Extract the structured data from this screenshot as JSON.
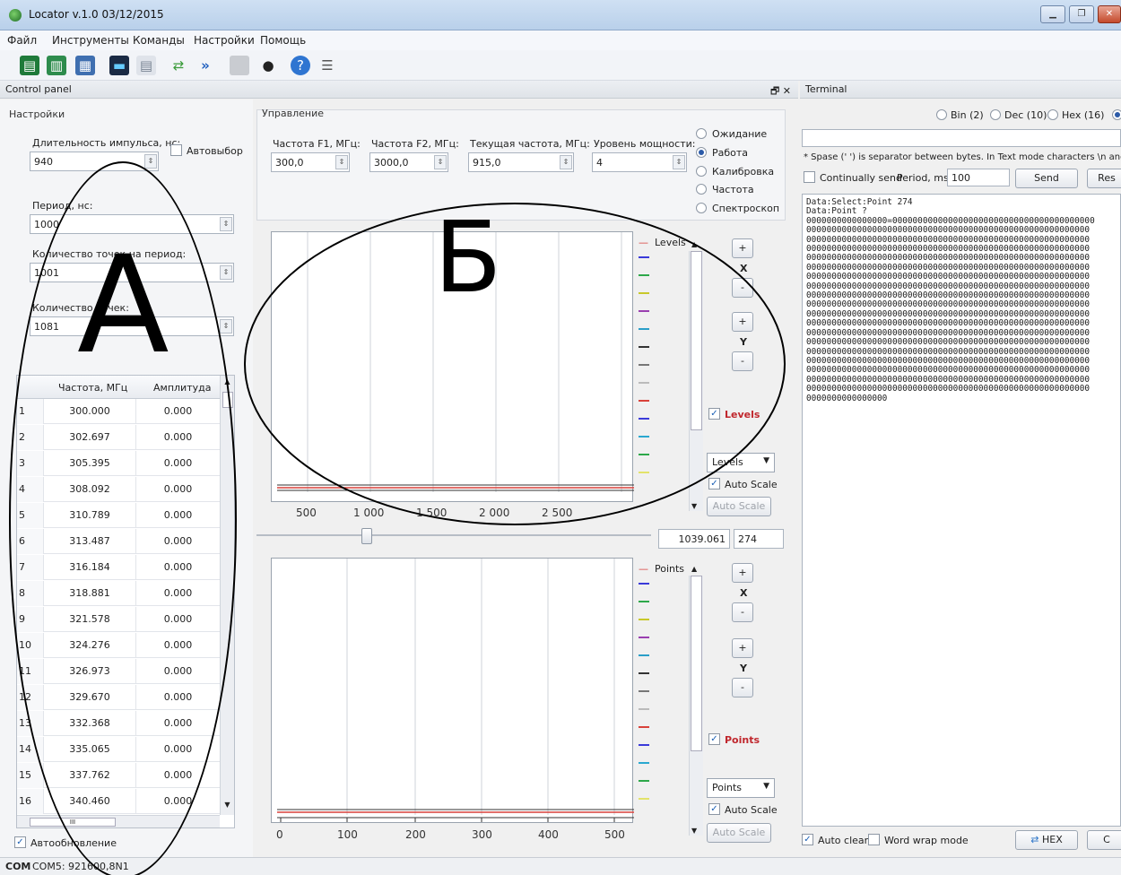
{
  "window": {
    "title": "Locator v.1.0 03/12/2015"
  },
  "menu": [
    "Файл",
    "Инструменты",
    "Команды",
    "Настройки",
    "Помощь"
  ],
  "docks": {
    "control": "Control panel",
    "terminal": "Terminal",
    "dock_icons": "🗗 ✕"
  },
  "settings": {
    "group": "Настройки",
    "pulse_label": "Длительность импульса, нс:",
    "pulse_value": "940",
    "auto_label": "Автовыбор",
    "period_label": "Период, нс:",
    "period_value": "1000",
    "points_per_period_label": "Количество точек на период:",
    "points_per_period_value": "1001",
    "points_label": "Количество точек:",
    "points_value": "1081"
  },
  "table": {
    "headers": [
      "Частота, МГц",
      "Амплитуда"
    ],
    "rows": [
      [
        "1",
        "300.000",
        "0.000"
      ],
      [
        "2",
        "302.697",
        "0.000"
      ],
      [
        "3",
        "305.395",
        "0.000"
      ],
      [
        "4",
        "308.092",
        "0.000"
      ],
      [
        "5",
        "310.789",
        "0.000"
      ],
      [
        "6",
        "313.487",
        "0.000"
      ],
      [
        "7",
        "316.184",
        "0.000"
      ],
      [
        "8",
        "318.881",
        "0.000"
      ],
      [
        "9",
        "321.578",
        "0.000"
      ],
      [
        "10",
        "324.276",
        "0.000"
      ],
      [
        "11",
        "326.973",
        "0.000"
      ],
      [
        "12",
        "329.670",
        "0.000"
      ],
      [
        "13",
        "332.368",
        "0.000"
      ],
      [
        "14",
        "335.065",
        "0.000"
      ],
      [
        "15",
        "337.762",
        "0.000"
      ],
      [
        "16",
        "340.460",
        "0.000"
      ]
    ],
    "hscroll_label": "III"
  },
  "auto_update": "Автообновление",
  "control": {
    "group": "Управление",
    "f1_label": "Частота F1, МГц:",
    "f1_value": "300,0",
    "f2_label": "Частота F2, МГц:",
    "f2_value": "3000,0",
    "cur_label": "Текущая частота, МГц:",
    "cur_value": "915,0",
    "power_label": "Уровень мощности:",
    "power_value": "4",
    "modes": [
      "Ожидание",
      "Работа",
      "Калибровка",
      "Частота",
      "Спектроскоп"
    ],
    "selected_mode": "Работа"
  },
  "plot1": {
    "legend": "Levels",
    "x_ticks": [
      "500",
      "1 000",
      "1 500",
      "2 000",
      "2 500"
    ],
    "check": "Levels",
    "combo": "Levels",
    "auto_scale": "Auto Scale",
    "auto_scale_btn": "Auto Scale"
  },
  "slider": {
    "value": "1039.061",
    "index": "274"
  },
  "plot2": {
    "legend": "Points",
    "x_ticks": [
      "0",
      "100",
      "200",
      "300",
      "400",
      "500"
    ],
    "check": "Points",
    "combo": "Points",
    "auto_scale": "Auto Scale",
    "auto_scale_btn": "Auto Scale"
  },
  "axis_buttons": {
    "plus": "+",
    "minus": "-",
    "x": "X",
    "y": "Y"
  },
  "terminal": {
    "formats": [
      "Bin (2)",
      "Dec (10)",
      "Hex (16)"
    ],
    "hint": "* Spase (' ') is separator between bytes. In Text mode characters \\n and \\r e",
    "continually": "Continually send",
    "period_label": "Period, ms:",
    "period_value": "100",
    "send": "Send",
    "reset": "Res",
    "lines": [
      "Data:Select:Point 274",
      "Data:Point ?",
      "0000000000000000=0000000000000000000000000000000000000000",
      "00000000000000000000000000000000000000000000000000000000",
      "00000000000000000000000000000000000000000000000000000000",
      "00000000000000000000000000000000000000000000000000000000",
      "00000000000000000000000000000000000000000000000000000000",
      "00000000000000000000000000000000000000000000000000000000",
      "00000000000000000000000000000000000000000000000000000000",
      "00000000000000000000000000000000000000000000000000000000",
      "00000000000000000000000000000000000000000000000000000000",
      "00000000000000000000000000000000000000000000000000000000",
      "00000000000000000000000000000000000000000000000000000000",
      "00000000000000000000000000000000000000000000000000000000",
      "00000000000000000000000000000000000000000000000000000000",
      "00000000000000000000000000000000000000000000000000000000",
      "00000000000000000000000000000000000000000000000000000000",
      "00000000000000000000000000000000000000000000000000000000",
      "00000000000000000000000000000000000000000000000000000000",
      "00000000000000000000000000000000000000000000000000000000",
      "00000000000000000000000000000000000000000000000000000000",
      "0000000000000000"
    ],
    "auto_clear": "Auto clear",
    "word_wrap": "Word wrap mode",
    "hex_btn": "HEX",
    "c_btn": "C"
  },
  "annotations": {
    "a": "А",
    "b": "Б"
  },
  "status": {
    "bold": "COM",
    "text": "COM5: 921600,8N1"
  },
  "colors": {
    "accent": "#2b5aa8",
    "trace": "#d9413a",
    "levels_check": "#c0272d"
  }
}
